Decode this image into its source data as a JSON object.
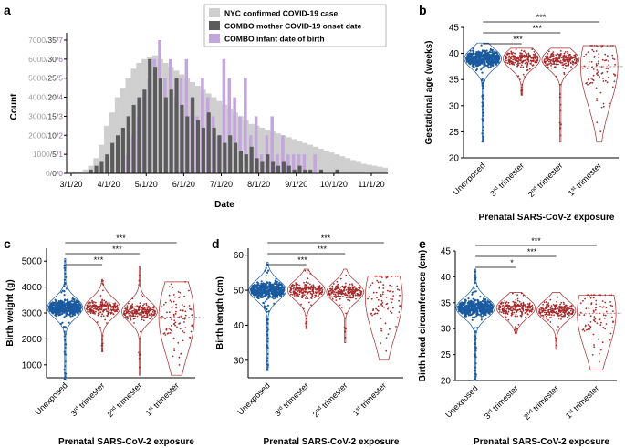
{
  "panel_labels": {
    "a": "a",
    "b": "b",
    "c": "c",
    "d": "d",
    "e": "e"
  },
  "colors": {
    "nyc": "#cfcfcf",
    "mother": "#5b5b5b",
    "infant": "#c3a6db",
    "unexposed": "#1a5aa0",
    "exposed": "#a52a2a",
    "axis": "#000000"
  },
  "chart_data": [
    {
      "id": "a",
      "type": "bar",
      "title": "",
      "xlabel": "Date",
      "ylabel": "Count",
      "x_ticks": [
        "3/1/20",
        "4/1/20",
        "5/1/20",
        "6/1/20",
        "7/1/20",
        "8/1/20",
        "9/1/20",
        "10/1/20",
        "11/1/20"
      ],
      "y_ticks_nyc": [
        "0",
        "1000",
        "2000",
        "3000",
        "4000",
        "5000",
        "6000",
        "7000"
      ],
      "y_ticks_mother": [
        "0",
        "5",
        "10",
        "15",
        "20",
        "25",
        "30",
        "35"
      ],
      "y_ticks_infant": [
        "0",
        "1",
        "2",
        "3",
        "4",
        "5",
        "6",
        "7"
      ],
      "ylim_nyc": [
        0,
        7000
      ],
      "legend": [
        "NYC confirmed COVID-19 case",
        "COMBO mother COVID-19 onset date",
        "COMBO infant date of birth"
      ],
      "series": [
        {
          "name": "NYC confirmed COVID-19 case",
          "scale_max": 7000,
          "values": [
            0,
            50,
            100,
            200,
            400,
            800,
            1500,
            2500,
            3200,
            4000,
            4500,
            5000,
            5500,
            5800,
            6000,
            6100,
            6200,
            6000,
            5800,
            5600,
            5400,
            5200,
            5000,
            4800,
            4600,
            4400,
            4200,
            4000,
            3800,
            3600,
            3400,
            3200,
            3000,
            2800,
            2600,
            2500,
            2400,
            2300,
            2200,
            2100,
            2000,
            1900,
            1800,
            1700,
            1600,
            1500,
            1400,
            1300,
            1200,
            1100,
            1000,
            900,
            800,
            700,
            600,
            500,
            450,
            400,
            350,
            300
          ]
        },
        {
          "name": "COMBO mother COVID-19 onset date",
          "scale_max": 35,
          "values": [
            0,
            0,
            0,
            0,
            1,
            2,
            3,
            5,
            8,
            10,
            12,
            15,
            18,
            20,
            22,
            30,
            28,
            25,
            20,
            22,
            25,
            18,
            15,
            20,
            14,
            12,
            16,
            12,
            10,
            8,
            10,
            8,
            6,
            5,
            7,
            4,
            3,
            5,
            3,
            2,
            3,
            2,
            1,
            2,
            1,
            1,
            0,
            1,
            0,
            0,
            1,
            0,
            0,
            0,
            0,
            0,
            0,
            0,
            0,
            0
          ]
        },
        {
          "name": "COMBO infant date of birth",
          "scale_max": 7,
          "values": [
            0,
            0,
            0,
            0,
            0,
            0,
            0,
            0,
            0,
            0,
            0,
            1,
            2,
            3,
            4,
            5,
            6,
            7,
            5,
            6,
            4,
            5,
            6,
            4,
            3,
            5,
            4,
            3,
            2,
            6,
            5,
            4,
            3,
            5,
            2,
            3,
            1,
            2,
            3,
            1,
            2,
            1,
            1,
            1,
            1,
            0,
            1,
            0,
            0,
            0,
            0,
            0,
            0,
            0,
            0,
            0,
            0,
            0,
            0,
            0
          ]
        }
      ]
    },
    {
      "id": "b",
      "type": "violin",
      "ylabel": "Gestational age (weeks)",
      "xlabel": "Prenatal SARS-CoV-2 exposure",
      "categories": [
        "Unexposed",
        "3rd trimester",
        "2nd trimester",
        "1st trimester"
      ],
      "ylim": [
        20,
        45
      ],
      "y_ticks": [
        "20",
        "25",
        "30",
        "35",
        "40",
        "45"
      ],
      "medians": [
        39,
        39,
        38.8,
        37.5
      ],
      "ranges": [
        [
          23,
          42
        ],
        [
          32,
          41
        ],
        [
          23,
          41
        ],
        [
          23,
          41.5
        ]
      ],
      "significance": [
        "***",
        "***",
        "***"
      ]
    },
    {
      "id": "c",
      "type": "violin",
      "ylabel": "Birth weight (g)",
      "xlabel": "Prenatal SARS-CoV-2 exposure",
      "categories": [
        "Unexposed",
        "3rd trimester",
        "2nd trimester",
        "1st trimester"
      ],
      "ylim": [
        500,
        5500
      ],
      "y_ticks": [
        "1000",
        "2000",
        "3000",
        "4000",
        "5000"
      ],
      "medians": [
        3200,
        3200,
        3050,
        2850
      ],
      "ranges": [
        [
          400,
          5100
        ],
        [
          1500,
          4300
        ],
        [
          600,
          4800
        ],
        [
          600,
          4200
        ]
      ],
      "significance": [
        "***",
        "***",
        "***"
      ]
    },
    {
      "id": "d",
      "type": "violin",
      "ylabel": "Birth length (cm)",
      "xlabel": "Prenatal SARS-CoV-2 exposure",
      "categories": [
        "Unexposed",
        "3rd trimester",
        "2nd trimester",
        "1st trimester"
      ],
      "ylim": [
        25,
        62
      ],
      "y_ticks": [
        "30",
        "40",
        "50",
        "60"
      ],
      "medians": [
        50,
        50,
        49.5,
        48
      ],
      "ranges": [
        [
          27,
          58
        ],
        [
          39,
          56
        ],
        [
          35,
          56
        ],
        [
          30,
          54
        ]
      ],
      "significance": [
        "***",
        "***",
        "***"
      ]
    },
    {
      "id": "e",
      "type": "violin",
      "ylabel": "Birth head circumference (cm)",
      "xlabel": "Prenatal SARS-CoV-2 exposure",
      "categories": [
        "Unexposed",
        "3rd trimester",
        "2nd trimester",
        "1st trimester"
      ],
      "ylim": [
        20,
        45
      ],
      "y_ticks": [
        "20",
        "25",
        "30",
        "35",
        "40",
        "45"
      ],
      "medians": [
        34,
        34,
        33.5,
        33
      ],
      "ranges": [
        [
          20,
          41.5
        ],
        [
          29,
          37
        ],
        [
          26,
          37
        ],
        [
          22,
          36.5
        ]
      ],
      "significance": [
        "***",
        "***",
        "*"
      ]
    }
  ]
}
